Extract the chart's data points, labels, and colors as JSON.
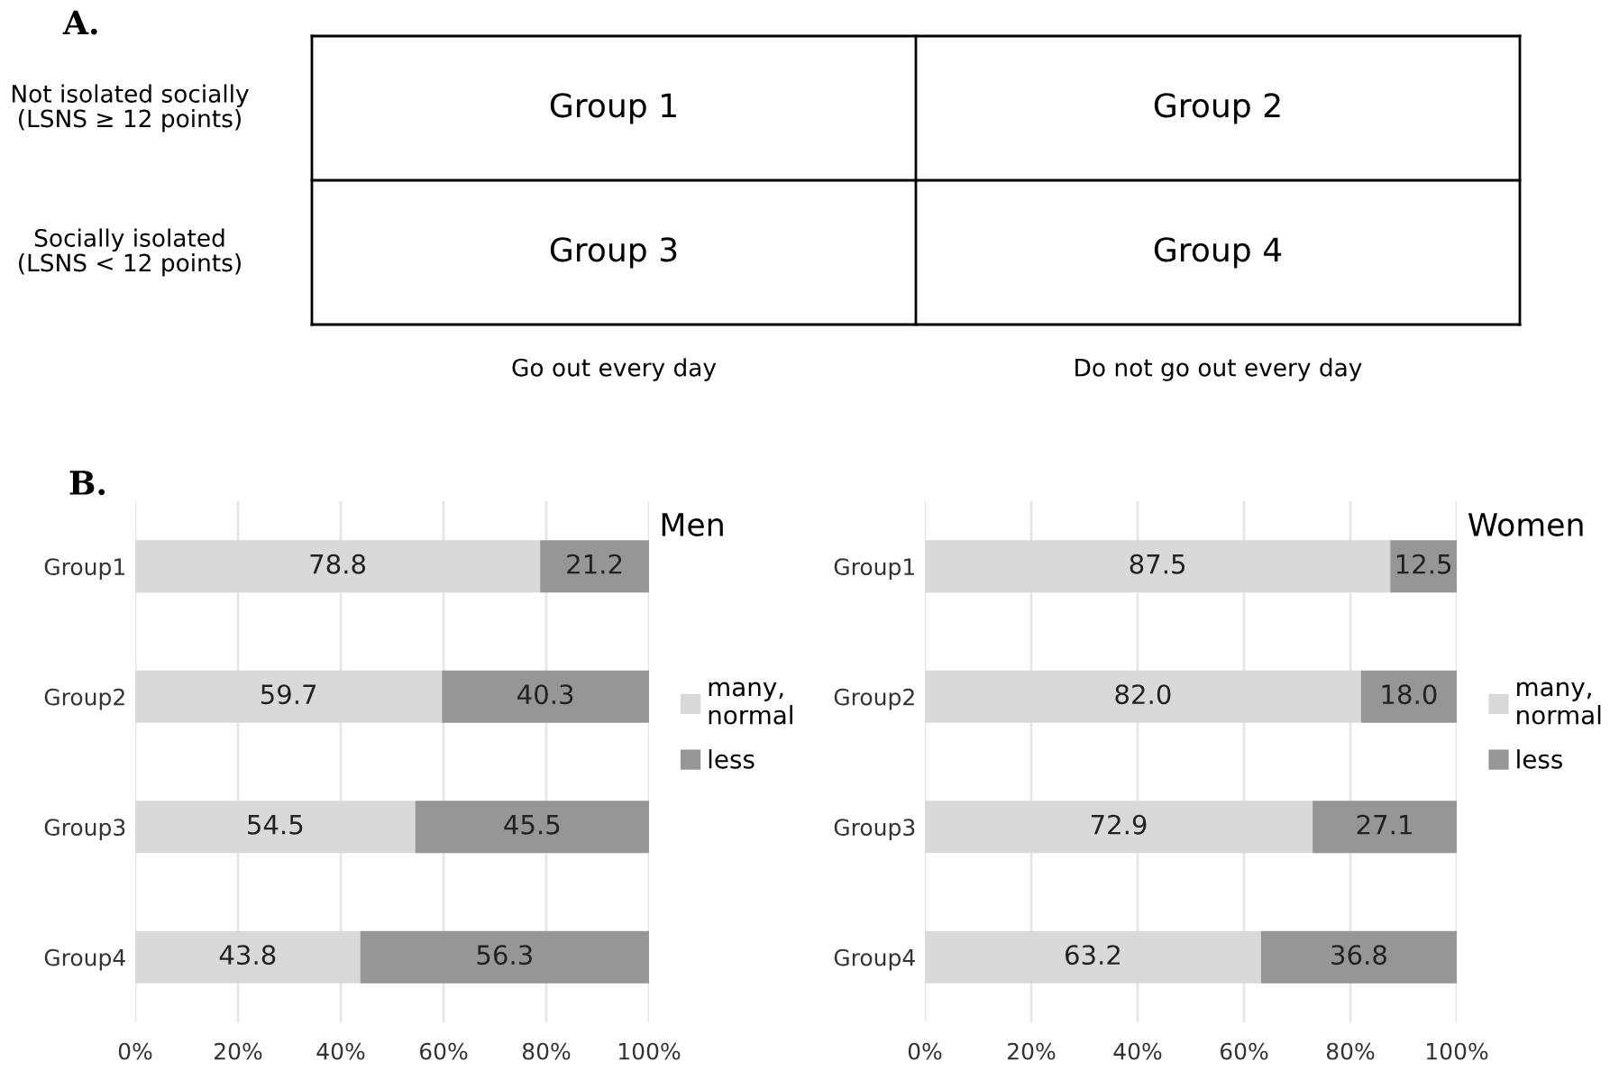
{
  "chart_data": [
    {
      "type": "other",
      "title": "A.",
      "categories": [
        "Go out every day",
        "Do not go out every day"
      ],
      "y_categories": [
        "Not isolated socially\n(LSNS ≥ 12 points)",
        "Socially isolated\n(LSNS < 12 points)"
      ],
      "cell_labels": [
        [
          "Group 1",
          "Group 2"
        ],
        [
          "Group 3",
          "Group 4"
        ]
      ]
    },
    {
      "type": "bar",
      "orientation": "horizontal",
      "stacked": true,
      "title": "Men",
      "annotations": [
        "B."
      ],
      "categories": [
        "Group1",
        "Group2",
        "Group3",
        "Group4"
      ],
      "series": [
        {
          "name": "many,\nnormal",
          "color": "#d9d9d9",
          "values": [
            78.8,
            59.7,
            54.5,
            43.8
          ]
        },
        {
          "name": "less",
          "color": "#969696",
          "values": [
            21.2,
            40.3,
            45.5,
            56.3
          ]
        }
      ],
      "xlim": [
        0,
        100
      ],
      "xticks": [
        {
          "value": 0,
          "label": "0%"
        },
        {
          "value": 20,
          "label": "20%"
        },
        {
          "value": 40,
          "label": "40%"
        },
        {
          "value": 60,
          "label": "60%"
        },
        {
          "value": 80,
          "label": "80%"
        },
        {
          "value": 100,
          "label": "100%"
        }
      ],
      "grid": "x",
      "legend": "right",
      "data_labels": true
    },
    {
      "type": "bar",
      "orientation": "horizontal",
      "stacked": true,
      "title": "Women",
      "categories": [
        "Group1",
        "Group2",
        "Group3",
        "Group4"
      ],
      "series": [
        {
          "name": "many,\nnormal",
          "color": "#d9d9d9",
          "values": [
            87.5,
            82.0,
            72.9,
            63.2
          ],
          "value_labels": [
            "87.5",
            "82.0",
            "72.9",
            "63.2"
          ]
        },
        {
          "name": "less",
          "color": "#969696",
          "values": [
            12.5,
            18.0,
            27.1,
            36.8
          ],
          "value_labels": [
            "12.5",
            "18.0",
            "27.1",
            "36.8"
          ]
        }
      ],
      "xlim": [
        0,
        100
      ],
      "xticks": [
        {
          "value": 0,
          "label": "0%"
        },
        {
          "value": 20,
          "label": "20%"
        },
        {
          "value": 40,
          "label": "40%"
        },
        {
          "value": 60,
          "label": "60%"
        },
        {
          "value": 80,
          "label": "80%"
        },
        {
          "value": 100,
          "label": "100%"
        }
      ],
      "grid": "x",
      "legend": "right"
    }
  ]
}
